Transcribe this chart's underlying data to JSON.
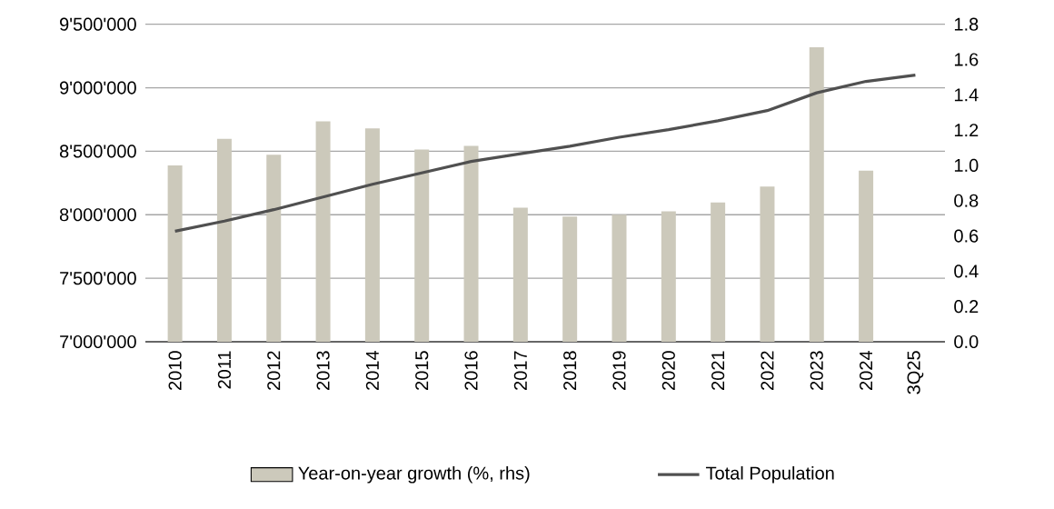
{
  "chart_data": {
    "type": "bar",
    "categories": [
      "2010",
      "2011",
      "2012",
      "2013",
      "2014",
      "2015",
      "2016",
      "2017",
      "2018",
      "2019",
      "2020",
      "2021",
      "2022",
      "2023",
      "2024",
      "3Q25"
    ],
    "series": [
      {
        "name": "Year-on-year growth (%, rhs)",
        "axis": "y2",
        "color": "#ccc9bb",
        "values": [
          1.0,
          1.15,
          1.06,
          1.25,
          1.21,
          1.09,
          1.11,
          0.76,
          0.71,
          0.72,
          0.74,
          0.79,
          0.88,
          1.67,
          0.97,
          null
        ]
      },
      {
        "name": "Total Population",
        "type": "line",
        "color": "#505050",
        "values": [
          7870000,
          7950000,
          8040000,
          8140000,
          8240000,
          8330000,
          8420000,
          8480000,
          8540000,
          8610000,
          8670000,
          8740000,
          8820000,
          8960000,
          9050000,
          9100000
        ]
      }
    ],
    "ylim": [
      7000000,
      9500000
    ],
    "yticks": [
      {
        "value": 7000000,
        "label": "7'000'000"
      },
      {
        "value": 7500000,
        "label": "7'500'000"
      },
      {
        "value": 8000000,
        "label": "8'000'000"
      },
      {
        "value": 8500000,
        "label": "8'500'000"
      },
      {
        "value": 9000000,
        "label": "9'000'000"
      },
      {
        "value": 9500000,
        "label": "9'500'000"
      }
    ],
    "y2lim": [
      0,
      1.8
    ],
    "y2ticks": [
      {
        "value": 0,
        "label": "0.0"
      },
      {
        "value": 0.2,
        "label": "0.2"
      },
      {
        "value": 0.4,
        "label": "0.4"
      },
      {
        "value": 0.6,
        "label": "0.6"
      },
      {
        "value": 0.8,
        "label": "0.8"
      },
      {
        "value": 1.0,
        "label": "1.0"
      },
      {
        "value": 1.2,
        "label": "1.2"
      },
      {
        "value": 1.4,
        "label": "1.4"
      },
      {
        "value": 1.6,
        "label": "1.6"
      },
      {
        "value": 1.8,
        "label": "1.8"
      }
    ],
    "grid": "y",
    "legend": "bottom"
  }
}
